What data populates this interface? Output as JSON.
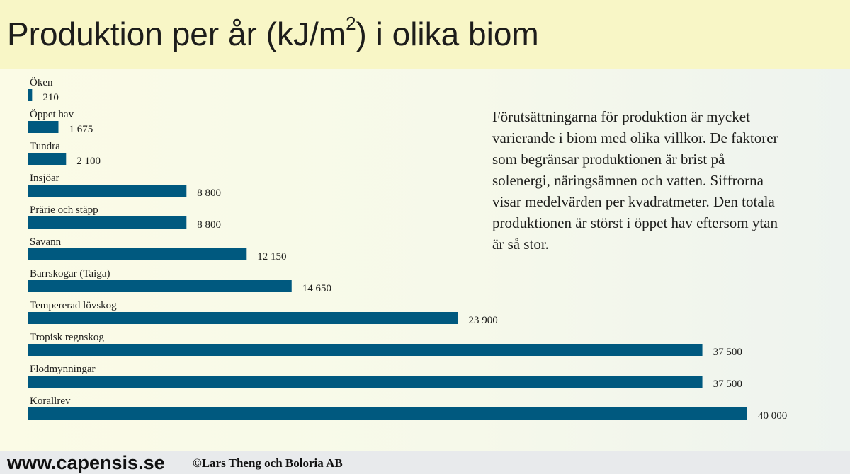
{
  "header": {
    "title_prefix": "Produktion per år (kJ/m",
    "title_sup": "2",
    "title_suffix": ") i olika biom"
  },
  "description": "Förutsättningarna för produktion är mycket varierande i biom med olika villkor. De faktorer som begränsar produktionen är brist på solenergi, näringsämnen och vatten. Siffrorna visar medelvärden per kvadratmeter. Den totala produktionen är störst i öppet hav eftersom ytan är så stor.",
  "footer": {
    "website": "www.capensis.se",
    "copyright": "©Lars Theng och Boloria AB"
  },
  "chart_data": {
    "type": "bar",
    "orientation": "horizontal",
    "title": "Produktion per år (kJ/m2) i olika biom",
    "categories": [
      "Öken",
      "Öppet hav",
      "Tundra",
      "Insjöar",
      "Prärie och stäpp",
      "Savann",
      "Barrskogar (Taiga)",
      "Tempererad lövskog",
      "Tropisk regnskog",
      "Flodmynningar",
      "Korallrev"
    ],
    "values": [
      210,
      1675,
      2100,
      8800,
      8800,
      12150,
      14650,
      23900,
      37500,
      37500,
      40000
    ],
    "value_labels": [
      "210",
      "1 675",
      "2 100",
      "8 800",
      "8 800",
      "12 150",
      "14 650",
      "23 900",
      "37 500",
      "37 500",
      "40 000"
    ],
    "xlim": [
      0,
      40000
    ],
    "bar_color": "#00597f",
    "grid": false,
    "legend": "none"
  }
}
